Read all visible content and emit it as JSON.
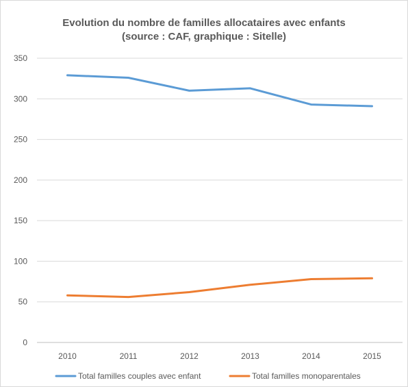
{
  "chart_data": {
    "type": "line",
    "title": "Evolution du nombre de familles allocataires avec enfants",
    "subtitle": "(source : CAF, graphique : Sitelle)",
    "x": [
      "2010",
      "2011",
      "2012",
      "2013",
      "2014",
      "2015"
    ],
    "series": [
      {
        "name": "Total familles couples avec enfant",
        "color": "#5b9bd5",
        "values": [
          329,
          326,
          310,
          313,
          293,
          291
        ]
      },
      {
        "name": "Total familles monoparentales",
        "color": "#ed7d31",
        "values": [
          58,
          56,
          62,
          71,
          78,
          79
        ]
      }
    ],
    "ylim": [
      0,
      350
    ],
    "yticks": [
      0,
      50,
      100,
      150,
      200,
      250,
      300,
      350
    ],
    "grid": true,
    "legend": "bottom"
  }
}
